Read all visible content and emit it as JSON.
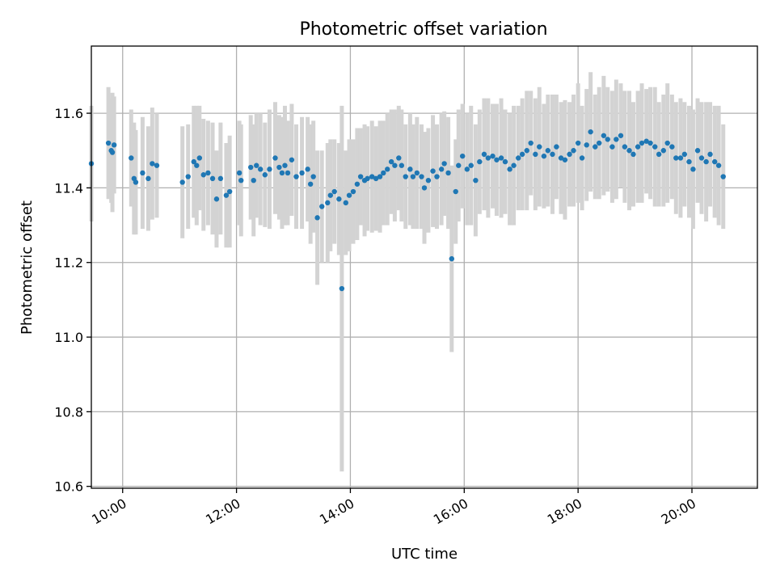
{
  "chart_data": {
    "type": "scatter",
    "title": "Photometric offset variation",
    "xlabel": "UTC time",
    "ylabel": "Photometric offset",
    "x_unit": "hours",
    "xlim": [
      9.45,
      21.15
    ],
    "ylim": [
      10.595,
      11.78
    ],
    "x_ticks": [
      {
        "value": 10,
        "label": "10:00"
      },
      {
        "value": 12,
        "label": "12:00"
      },
      {
        "value": 14,
        "label": "14:00"
      },
      {
        "value": 16,
        "label": "16:00"
      },
      {
        "value": 18,
        "label": "18:00"
      },
      {
        "value": 20,
        "label": "20:00"
      }
    ],
    "y_ticks": [
      {
        "value": 10.6,
        "label": "10.6"
      },
      {
        "value": 10.8,
        "label": "10.8"
      },
      {
        "value": 11.0,
        "label": "11.0"
      },
      {
        "value": 11.2,
        "label": "11.2"
      },
      {
        "value": 11.4,
        "label": "11.4"
      },
      {
        "value": 11.6,
        "label": "11.6"
      }
    ],
    "grid": true,
    "colors": {
      "marker": "#1f77b4",
      "errorbar": "#d3d3d3",
      "grid": "#b0b0b0"
    },
    "series": [
      {
        "x": [
          9.45,
          9.75,
          9.8,
          9.82,
          9.85,
          10.15,
          10.2,
          10.23,
          10.35,
          10.45,
          10.52,
          10.6,
          11.05,
          11.15,
          11.25,
          11.3,
          11.35,
          11.42,
          11.5,
          11.58,
          11.65,
          11.72,
          11.82,
          11.88,
          12.05,
          12.08,
          12.25,
          12.3,
          12.35,
          12.42,
          12.5,
          12.58,
          12.68,
          12.75,
          12.8,
          12.85,
          12.9,
          12.97,
          13.05,
          13.15,
          13.25,
          13.3,
          13.35,
          13.42,
          13.5,
          13.6,
          13.65,
          13.72,
          13.8,
          13.85,
          13.92,
          13.98,
          14.05,
          14.12,
          14.18,
          14.25,
          14.3,
          14.38,
          14.45,
          14.52,
          14.58,
          14.65,
          14.72,
          14.78,
          14.85,
          14.9,
          14.97,
          15.05,
          15.1,
          15.17,
          15.25,
          15.3,
          15.37,
          15.45,
          15.52,
          15.6,
          15.65,
          15.72,
          15.78,
          15.85,
          15.9,
          15.97,
          16.05,
          16.12,
          16.2,
          16.27,
          16.35,
          16.42,
          16.5,
          16.57,
          16.65,
          16.72,
          16.8,
          16.87,
          16.95,
          17.02,
          17.1,
          17.17,
          17.25,
          17.32,
          17.4,
          17.47,
          17.55,
          17.62,
          17.7,
          17.77,
          17.85,
          17.92,
          18.0,
          18.07,
          18.15,
          18.22,
          18.3,
          18.37,
          18.45,
          18.52,
          18.6,
          18.67,
          18.75,
          18.82,
          18.9,
          18.97,
          19.05,
          19.12,
          19.2,
          19.27,
          19.35,
          19.42,
          19.5,
          19.57,
          19.65,
          19.72,
          19.8,
          19.87,
          19.95,
          20.02,
          20.1,
          20.17,
          20.25,
          20.32,
          20.4,
          20.47,
          20.55
        ],
        "y": [
          11.465,
          11.52,
          11.5,
          11.495,
          11.515,
          11.48,
          11.425,
          11.415,
          11.44,
          11.425,
          11.465,
          11.46,
          11.415,
          11.43,
          11.47,
          11.46,
          11.48,
          11.435,
          11.44,
          11.425,
          11.37,
          11.425,
          11.38,
          11.39,
          11.44,
          11.42,
          11.455,
          11.42,
          11.46,
          11.45,
          11.435,
          11.45,
          11.48,
          11.455,
          11.44,
          11.46,
          11.44,
          11.475,
          11.43,
          11.44,
          11.45,
          11.41,
          11.43,
          11.32,
          11.35,
          11.36,
          11.38,
          11.39,
          11.37,
          11.13,
          11.36,
          11.38,
          11.39,
          11.41,
          11.43,
          11.42,
          11.425,
          11.43,
          11.425,
          11.43,
          11.44,
          11.45,
          11.47,
          11.46,
          11.48,
          11.46,
          11.43,
          11.45,
          11.43,
          11.44,
          11.43,
          11.4,
          11.42,
          11.445,
          11.43,
          11.45,
          11.465,
          11.44,
          11.21,
          11.39,
          11.46,
          11.485,
          11.45,
          11.46,
          11.42,
          11.47,
          11.49,
          11.48,
          11.485,
          11.475,
          11.48,
          11.47,
          11.45,
          11.46,
          11.48,
          11.49,
          11.5,
          11.52,
          11.49,
          11.51,
          11.485,
          11.5,
          11.49,
          11.51,
          11.48,
          11.475,
          11.49,
          11.5,
          11.52,
          11.48,
          11.515,
          11.55,
          11.51,
          11.52,
          11.54,
          11.53,
          11.51,
          11.53,
          11.54,
          11.51,
          11.5,
          11.49,
          11.51,
          11.52,
          11.525,
          11.52,
          11.51,
          11.49,
          11.5,
          11.52,
          11.51,
          11.48,
          11.48,
          11.49,
          11.47,
          11.45,
          11.5,
          11.48,
          11.47,
          11.49,
          11.47,
          11.46,
          11.43
        ],
        "yerr": [
          0.155,
          0.15,
          0.14,
          0.16,
          0.13,
          0.13,
          0.15,
          0.14,
          0.15,
          0.14,
          0.15,
          0.14,
          0.15,
          0.14,
          0.15,
          0.16,
          0.14,
          0.15,
          0.14,
          0.15,
          0.13,
          0.15,
          0.14,
          0.15,
          0.14,
          0.15,
          0.14,
          0.15,
          0.14,
          0.15,
          0.14,
          0.16,
          0.15,
          0.14,
          0.15,
          0.16,
          0.14,
          0.15,
          0.14,
          0.15,
          0.14,
          0.16,
          0.15,
          0.18,
          0.15,
          0.16,
          0.15,
          0.14,
          0.15,
          0.49,
          0.14,
          0.15,
          0.14,
          0.15,
          0.13,
          0.15,
          0.14,
          0.15,
          0.14,
          0.15,
          0.14,
          0.15,
          0.14,
          0.15,
          0.14,
          0.15,
          0.14,
          0.15,
          0.14,
          0.15,
          0.14,
          0.15,
          0.14,
          0.15,
          0.14,
          0.15,
          0.14,
          0.15,
          0.25,
          0.14,
          0.15,
          0.14,
          0.15,
          0.16,
          0.15,
          0.14,
          0.15,
          0.16,
          0.14,
          0.15,
          0.16,
          0.14,
          0.15,
          0.16,
          0.14,
          0.15,
          0.16,
          0.14,
          0.15,
          0.16,
          0.14,
          0.15,
          0.16,
          0.14,
          0.15,
          0.16,
          0.14,
          0.15,
          0.16,
          0.14,
          0.15,
          0.16,
          0.14,
          0.15,
          0.16,
          0.14,
          0.15,
          0.16,
          0.14,
          0.15,
          0.16,
          0.14,
          0.15,
          0.16,
          0.14,
          0.15,
          0.16,
          0.14,
          0.15,
          0.16,
          0.14,
          0.15,
          0.16,
          0.14,
          0.15,
          0.16,
          0.14,
          0.15,
          0.16,
          0.14,
          0.15,
          0.16,
          0.14
        ]
      }
    ]
  }
}
